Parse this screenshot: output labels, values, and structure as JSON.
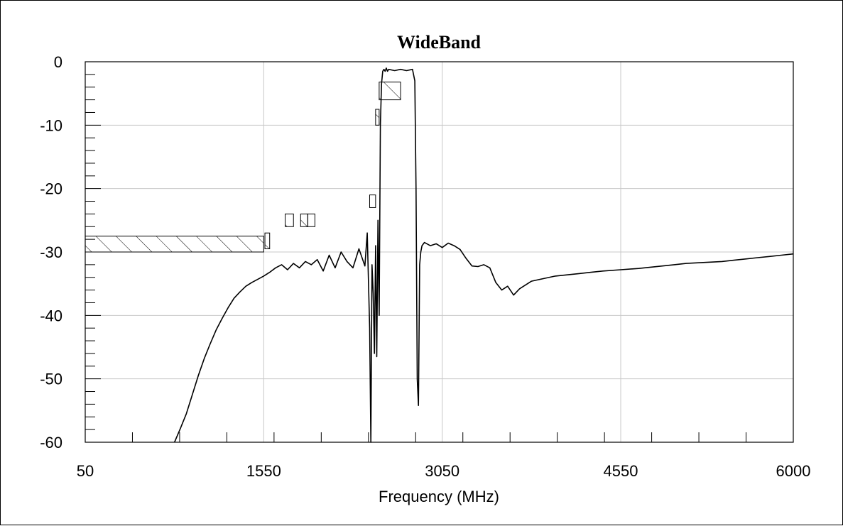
{
  "chart_data": {
    "type": "line",
    "title": "WideBand",
    "xlabel": "Frequency (MHz)",
    "ylabel": "",
    "xlim": [
      50,
      6000
    ],
    "ylim": [
      -60,
      0
    ],
    "x_ticks": [
      50,
      1550,
      3050,
      4550,
      6000
    ],
    "x_tick_labels": [
      "50",
      "1550",
      "3050",
      "4550",
      "6000"
    ],
    "y_ticks": [
      0,
      -10,
      -20,
      -30,
      -40,
      -50,
      -60
    ],
    "y_tick_labels": [
      "0",
      "-10",
      "-20",
      "-30",
      "-40",
      "-50",
      "-60"
    ],
    "grid": true,
    "line_color": "#000000",
    "grid_color": "#c8c8c8",
    "series": [
      {
        "x": [
          800,
          850,
          900,
          950,
          1000,
          1050,
          1100,
          1150,
          1200,
          1250,
          1300,
          1350,
          1400,
          1450,
          1500,
          1550,
          1600,
          1650,
          1700,
          1750,
          1800,
          1850,
          1900,
          1950,
          2000,
          2050,
          2100,
          2150,
          2200,
          2250,
          2300,
          2350,
          2400,
          2420,
          2440,
          2450,
          2460,
          2470,
          2480,
          2490,
          2500,
          2510,
          2520,
          2530,
          2540,
          2550,
          2560,
          2570,
          2580,
          2590,
          2600,
          2650,
          2700,
          2750,
          2800,
          2820,
          2830,
          2840,
          2850,
          2860,
          2870,
          2880,
          2900,
          2950,
          3000,
          3050,
          3100,
          3150,
          3200,
          3250,
          3300,
          3350,
          3400,
          3450,
          3500,
          3550,
          3600,
          3650,
          3700,
          3800,
          3900,
          4000,
          4100,
          4200,
          4300,
          4400,
          4550,
          4700,
          4800,
          4900,
          5000,
          5100,
          5200,
          5300,
          5400,
          5500,
          5600,
          5700,
          5800,
          5900,
          6000
        ],
        "y": [
          -60,
          -57.8,
          -55.5,
          -52.5,
          -49.5,
          -46.8,
          -44.5,
          -42.3,
          -40.5,
          -38.8,
          -37.3,
          -36.3,
          -35.4,
          -34.8,
          -34.3,
          -33.8,
          -33.2,
          -32.5,
          -32.0,
          -32.8,
          -31.8,
          -32.5,
          -31.5,
          -32.0,
          -31.2,
          -33.0,
          -30.5,
          -32.5,
          -30.0,
          -31.5,
          -32.5,
          -29.5,
          -32.2,
          -27.0,
          -42.0,
          -60.0,
          -32.0,
          -36.5,
          -46.0,
          -29.0,
          -46.5,
          -25.0,
          -40.0,
          -10.0,
          -3.5,
          -1.5,
          -1.2,
          -1.5,
          -1.0,
          -1.5,
          -1.2,
          -1.4,
          -1.2,
          -1.4,
          -1.2,
          -3.0,
          -20.0,
          -50.0,
          -54.2,
          -32.0,
          -30.0,
          -29.0,
          -28.5,
          -29.0,
          -28.7,
          -29.3,
          -28.6,
          -29.0,
          -29.6,
          -31.0,
          -32.2,
          -32.3,
          -32.0,
          -32.5,
          -34.8,
          -36.0,
          -35.4,
          -36.8,
          -35.8,
          -34.6,
          -34.2,
          -33.8,
          -33.6,
          -33.4,
          -33.2,
          -33.0,
          -32.8,
          -32.6,
          -32.4,
          -32.2,
          -32.0,
          -31.8,
          -31.7,
          -31.6,
          -31.5,
          -31.3,
          -31.1,
          -30.9,
          -30.7,
          -30.5,
          -30.3
        ]
      }
    ],
    "limit_masks": [
      {
        "x": [
          50,
          1550
        ],
        "y": [
          -30,
          -27.5
        ]
      },
      {
        "x": [
          1560,
          1600
        ],
        "y": [
          -29.5,
          -27
        ]
      },
      {
        "x": [
          1730,
          1800
        ],
        "y": [
          -26,
          -24
        ]
      },
      {
        "x": [
          1860,
          1920
        ],
        "y": [
          -26,
          -24
        ]
      },
      {
        "x": [
          1920,
          1980
        ],
        "y": [
          -26,
          -24
        ]
      },
      {
        "x": [
          2440,
          2490
        ],
        "y": [
          -23,
          -21
        ]
      },
      {
        "x": [
          2490,
          2520
        ],
        "y": [
          -10,
          -7.5
        ]
      },
      {
        "x": [
          2520,
          2700
        ],
        "y": [
          -6,
          -3.2
        ]
      }
    ]
  }
}
